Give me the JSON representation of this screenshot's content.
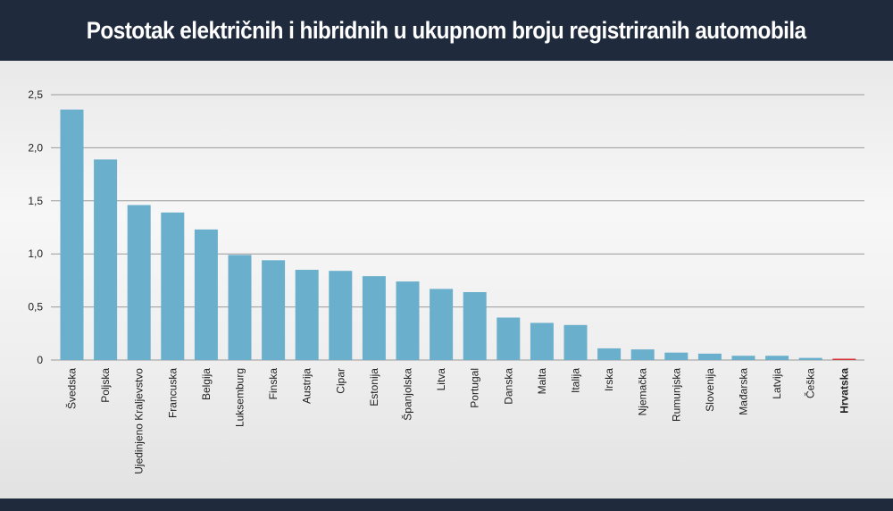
{
  "header": {
    "title": "Postotak električnih i hibridnih u ukupnom broju registriranih automobila"
  },
  "colors": {
    "bar": "#6aafcc",
    "highlight_bar": "#d9343a",
    "header_bg": "#1f2a3d",
    "gridline": "#9a9a9a"
  },
  "chart_data": {
    "type": "bar",
    "title": "Postotak električnih i hibridnih u ukupnom broju registriranih automobila",
    "xlabel": "",
    "ylabel": "",
    "ylim": [
      0,
      2.5
    ],
    "yticks": [
      0,
      0.5,
      1.0,
      1.5,
      2.0,
      2.5
    ],
    "ytick_labels": [
      "0",
      "0,5",
      "1,0",
      "1,5",
      "2,0",
      "2,5"
    ],
    "grid": true,
    "highlight_category": "Hrvatska",
    "categories": [
      "Švedska",
      "Poljska",
      "Ujedinjeno Kraljevstvo",
      "Francuska",
      "Belgija",
      "Luksemburg",
      "Finska",
      "Austrija",
      "Cipar",
      "Estonija",
      "Španjolska",
      "Litva",
      "Portugal",
      "Danska",
      "Malta",
      "Italija",
      "Irska",
      "Njemačka",
      "Rumunjska",
      "Slovenija",
      "Mađarska",
      "Latvija",
      "Češka",
      "Hrvatska"
    ],
    "values": [
      2.36,
      1.89,
      1.46,
      1.39,
      1.23,
      0.99,
      0.94,
      0.85,
      0.84,
      0.79,
      0.74,
      0.67,
      0.64,
      0.4,
      0.35,
      0.33,
      0.11,
      0.1,
      0.07,
      0.06,
      0.04,
      0.04,
      0.02,
      0.01
    ]
  }
}
